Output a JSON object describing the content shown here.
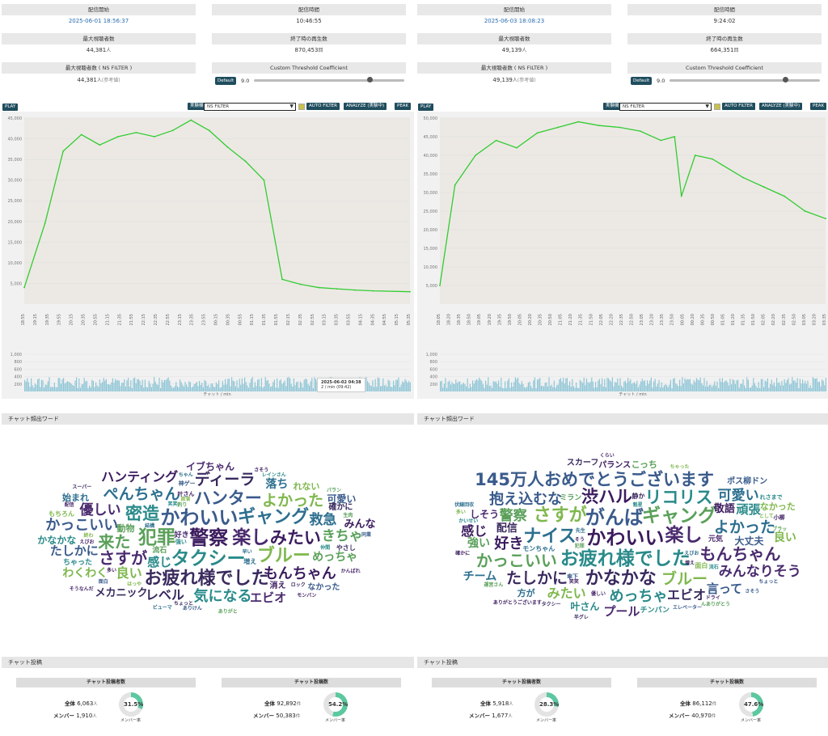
{
  "accent": "#1f4d5e",
  "series_color": "#33cc33",
  "highlight_color": "#cc3333",
  "panels": [
    {
      "stats": {
        "start_label": "配信開始",
        "start_value": "2025-06-01 18:56:37",
        "duration_label": "配信時間",
        "duration_value": "10:46:55",
        "max_viewers_label": "最大視聴者数",
        "max_viewers_value": "44,381",
        "max_viewers_unit": "人",
        "end_plays_label": "終了時の再生数",
        "end_plays_value": "870,453",
        "end_plays_unit": "回",
        "max_ns_label": "最大視聴者数 ( NS FILTER )",
        "max_ns_value": "44,381",
        "max_ns_unit": "人",
        "max_ns_ref": "(参考値)",
        "threshold_label": "Custom Threshold Coefficient",
        "default_btn": "Default",
        "threshold_value": "9.0",
        "threshold_level": 0.77
      },
      "controls": {
        "play": "PLAY",
        "experimental": "実験機能",
        "filter_select": "NS FILTER",
        "auto_filter": "AUTO FILTER",
        "analyze": "ANALYZE (実験中)",
        "peak": "PEAK"
      },
      "tooltip": {
        "time": "2025-06-02 04:38",
        "value": "2 / min",
        "sub": "(09:42)"
      },
      "chat_axis_label": "チャット / min",
      "wordcloud_title": "チャット頻出ワード",
      "chat_title": "チャット投稿",
      "posters": {
        "head": "チャット投稿者数",
        "all_label": "全体",
        "all_value": "6,063",
        "all_unit": "人",
        "mem_label": "メンバー",
        "mem_value": "1,910",
        "mem_unit": "人",
        "rate": "31.5%",
        "rate_num": 31.5,
        "rate_label": "メンバー率"
      },
      "posts": {
        "head": "チャット投稿数",
        "all_label": "全体",
        "all_value": "92,892",
        "all_unit": "件",
        "mem_label": "メンバー",
        "mem_value": "50,383",
        "mem_unit": "件",
        "rate": "54.2%",
        "rate_num": 54.2,
        "rate_label": "メンバー率"
      },
      "words": [
        "警察",
        "かわいい",
        "タクシー",
        "楽し",
        "犯罪",
        "ギャング",
        "ブルー",
        "お疲れ様でした",
        "みたい",
        "ハンター",
        "密造",
        "さすが",
        "来た",
        "ぺんちゃん",
        "よかった",
        "ディーラ",
        "もんちゃん",
        "かっこいい",
        "気になる",
        "優しい",
        "きちゃ",
        "救急",
        "良い",
        "レベル",
        "ハンティング",
        "たしかに",
        "感じ",
        "エビオ",
        "めっちゃ",
        "落ち",
        "わくわく",
        "メカニック",
        "みんな",
        "可愛い",
        "かなかな",
        "イブちゃん",
        "動物",
        "始まれ",
        "れない",
        "確かに",
        "消え",
        "なかった",
        "ちゃった",
        "好き",
        "流石",
        "増え",
        "もちろん",
        "やさし",
        "叶さん",
        "神ゲー",
        "強い",
        "えびお",
        "釣り",
        "結構",
        "はっや",
        "ちょっと",
        "多い",
        "同業",
        "レインさん",
        "かんばれ",
        "生肉",
        "早い",
        "欲食",
        "ロック",
        "モンバン",
        "面白",
        "笑笑",
        "配信",
        "ありがと",
        "ビューマ",
        "終わ",
        "スーパー",
        "さそう",
        "ありけん",
        "仲間",
        "そうなんだ",
        "パラン",
        "ちゃん"
      ],
      "chart_data": {
        "type": "line",
        "ylim": [
          0,
          45000
        ],
        "yticks": [
          5000,
          10000,
          15000,
          20000,
          25000,
          30000,
          35000,
          40000,
          45000
        ],
        "x": [
          "18:56",
          "19:30",
          "20:00",
          "20:30",
          "21:00",
          "21:30",
          "22:00",
          "22:30",
          "23:00",
          "23:30",
          "00:00",
          "00:30",
          "01:00",
          "01:30",
          "02:00",
          "02:30",
          "03:00",
          "03:30",
          "04:00",
          "04:30",
          "05:30"
        ],
        "values": [
          4000,
          19500,
          37000,
          41000,
          38500,
          40500,
          41500,
          40500,
          42000,
          44500,
          42000,
          38000,
          34500,
          30000,
          6000,
          4800,
          4000,
          3700,
          3400,
          3200,
          3000
        ],
        "xticks": [
          "18:55",
          "19:15",
          "19:35",
          "19:55",
          "20:15",
          "20:35",
          "20:55",
          "21:15",
          "21:35",
          "21:55",
          "22:15",
          "22:35",
          "22:55",
          "23:15",
          "23:35",
          "23:55",
          "00:15",
          "00:35",
          "00:55",
          "01:15",
          "01:35",
          "01:55",
          "02:15",
          "02:35",
          "02:55",
          "03:15",
          "03:35",
          "03:55",
          "04:15",
          "04:35",
          "04:55",
          "05:15",
          "05:35"
        ],
        "chat_ylim": [
          0,
          1000
        ],
        "chat_yticks": [
          200,
          400,
          600,
          800,
          1000
        ]
      }
    },
    {
      "stats": {
        "start_label": "配信開始",
        "start_value": "2025-06-03 18:08:23",
        "duration_label": "配信時間",
        "duration_value": "9:24:02",
        "max_viewers_label": "最大視聴者数",
        "max_viewers_value": "49,139",
        "max_viewers_unit": "人",
        "end_plays_label": "終了時の再生数",
        "end_plays_value": "664,351",
        "end_plays_unit": "回",
        "max_ns_label": "最大視聴者数 ( NS FILTER )",
        "max_ns_value": "49,139",
        "max_ns_unit": "人",
        "max_ns_ref": "(参考値)",
        "threshold_label": "Custom Threshold Coefficient",
        "default_btn": "Default",
        "threshold_value": "9.0",
        "threshold_level": 0.77
      },
      "controls": {
        "play": "PLAY",
        "experimental": "実験機能",
        "filter_select": "NS FILTER",
        "auto_filter": "AUTO FILTER",
        "analyze": "ANALYZE (実験中)",
        "peak": "PEAK"
      },
      "tooltip": null,
      "chat_axis_label": "チャット / min",
      "wordcloud_title": "チャット頻出ワード",
      "chat_title": "チャット投稿",
      "posters": {
        "head": "チャット投稿者数",
        "all_label": "全体",
        "all_value": "5,918",
        "all_unit": "人",
        "mem_label": "メンバー",
        "mem_value": "1,677",
        "mem_unit": "人",
        "rate": "28.3%",
        "rate_num": 28.3,
        "rate_label": "メンバー率"
      },
      "posts": {
        "head": "チャット投稿数",
        "all_label": "全体",
        "all_value": "86,112",
        "all_unit": "件",
        "mem_label": "メンバー",
        "mem_value": "40,970",
        "mem_unit": "件",
        "rate": "47.6%",
        "rate_num": 47.6,
        "rate_label": "メンバー率"
      },
      "words": [
        "かわいい",
        "がんば",
        "お疲れ様でした",
        "楽し",
        "ギャング",
        "ナイス",
        "さすが",
        "かなかな",
        "渋ハル",
        "145万人おめでとうございます",
        "リコリス",
        "もんちゃん",
        "かっこいい",
        "よかった",
        "ブルー",
        "たしかに",
        "好き",
        "抱え込むな",
        "めっちゃ",
        "みんなりそう",
        "警察",
        "可愛い",
        "みたい",
        "エビオ",
        "感じ",
        "言って",
        "頑張",
        "プール",
        "強い",
        "チーム",
        "良い",
        "配信",
        "敬語",
        "大丈夫",
        "叶さん",
        "しそう",
        "こっち",
        "方が",
        "なかった",
        "スカーフ",
        "パランス",
        "ポス柳ドン",
        "チンパン",
        "元気",
        "ミラン",
        "モンちゃん",
        "面白",
        "静か",
        "小柳",
        "傘下",
        "れさまで",
        "優しい",
        "犯罪",
        "えびお",
        "ちゃった",
        "増え",
        "そう",
        "エレベーター",
        "かいせい",
        "ドライ",
        "ブラッ",
        "先生",
        "として",
        "タクシー",
        "確かに",
        "さそう",
        "流石",
        "笑笑",
        "運営さん",
        "伏線回収",
        "多い",
        "半グレ",
        "ありがとうございます",
        "ちょっと",
        "魁星",
        "くらい",
        "んありがとう"
      ],
      "chart_data": {
        "type": "line",
        "ylim": [
          0,
          50000
        ],
        "yticks": [
          5000,
          10000,
          15000,
          20000,
          25000,
          30000,
          35000,
          40000,
          45000,
          50000
        ],
        "x": [
          "18:08",
          "18:30",
          "19:00",
          "19:30",
          "20:00",
          "20:30",
          "21:00",
          "21:30",
          "22:00",
          "22:30",
          "23:00",
          "23:30",
          "23:50",
          "00:00",
          "00:20",
          "00:45",
          "01:30",
          "02:00",
          "02:30",
          "03:00",
          "03:30"
        ],
        "values": [
          5000,
          32000,
          40000,
          44000,
          42000,
          46000,
          47500,
          49000,
          48000,
          47500,
          46500,
          44000,
          45000,
          29000,
          40000,
          39000,
          34000,
          31500,
          29000,
          25000,
          23000
        ],
        "xticks": [
          "18:05",
          "18:20",
          "18:35",
          "18:50",
          "19:05",
          "19:20",
          "19:35",
          "19:50",
          "20:05",
          "20:20",
          "20:35",
          "20:50",
          "21:05",
          "21:20",
          "21:35",
          "21:50",
          "22:05",
          "22:20",
          "22:35",
          "22:50",
          "23:05",
          "23:20",
          "23:35",
          "23:50",
          "00:05",
          "00:20",
          "00:35",
          "00:50",
          "01:05",
          "01:20",
          "01:35",
          "01:50",
          "02:05",
          "02:20",
          "02:35",
          "02:50",
          "03:05",
          "03:20",
          "03:35"
        ],
        "chat_ylim": [
          0,
          1000
        ],
        "chat_yticks": [
          200,
          400,
          600,
          800,
          1000
        ]
      }
    }
  ]
}
